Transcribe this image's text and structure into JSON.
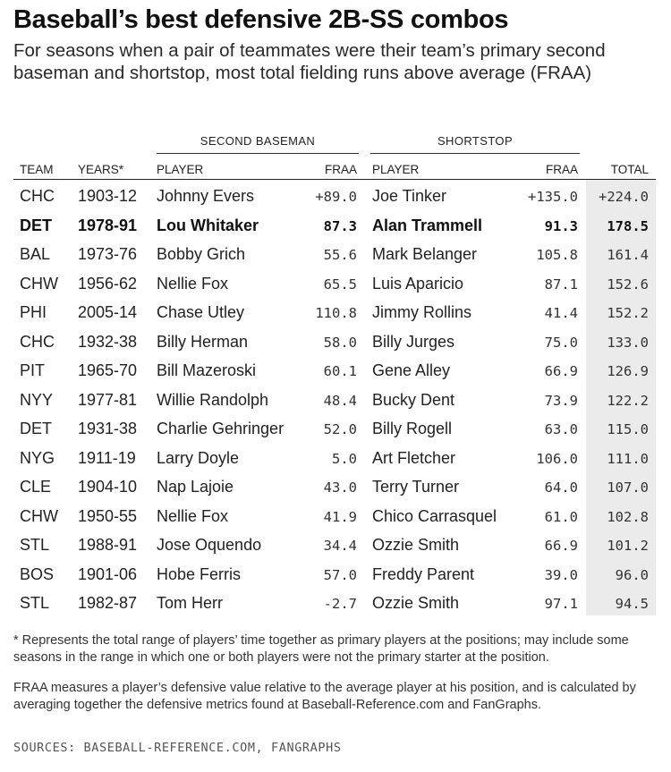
{
  "header": {
    "title": "Baseball’s best defensive 2B-SS combos",
    "subtitle": "For seasons when a pair of teammates were their team’s primary second baseman and shortstop, most total fielding runs above average (FRAA)"
  },
  "table": {
    "group_headers": {
      "second": "SECOND BASEMAN",
      "short": "SHORTSTOP"
    },
    "columns": [
      "TEAM",
      "YEARS*",
      "PLAYER",
      "FRAA",
      "PLAYER",
      "FRAA",
      "TOTAL"
    ],
    "rows": [
      {
        "team": "CHC",
        "years": "1903-12",
        "p1": "Johnny Evers",
        "f1": "+89.0",
        "p2": "Joe Tinker",
        "f2": "+135.0",
        "total": "+224.0",
        "bold": false
      },
      {
        "team": "DET",
        "years": "1978-91",
        "p1": "Lou Whitaker",
        "f1": "87.3",
        "p2": "Alan Trammell",
        "f2": "91.3",
        "total": "178.5",
        "bold": true
      },
      {
        "team": "BAL",
        "years": "1973-76",
        "p1": "Bobby Grich",
        "f1": "55.6",
        "p2": "Mark Belanger",
        "f2": "105.8",
        "total": "161.4",
        "bold": false
      },
      {
        "team": "CHW",
        "years": "1956-62",
        "p1": "Nellie Fox",
        "f1": "65.5",
        "p2": "Luis Aparicio",
        "f2": "87.1",
        "total": "152.6",
        "bold": false
      },
      {
        "team": "PHI",
        "years": "2005-14",
        "p1": "Chase Utley",
        "f1": "110.8",
        "p2": "Jimmy Rollins",
        "f2": "41.4",
        "total": "152.2",
        "bold": false
      },
      {
        "team": "CHC",
        "years": "1932-38",
        "p1": "Billy Herman",
        "f1": "58.0",
        "p2": "Billy Jurges",
        "f2": "75.0",
        "total": "133.0",
        "bold": false
      },
      {
        "team": "PIT",
        "years": "1965-70",
        "p1": "Bill Mazeroski",
        "f1": "60.1",
        "p2": "Gene Alley",
        "f2": "66.9",
        "total": "126.9",
        "bold": false
      },
      {
        "team": "NYY",
        "years": "1977-81",
        "p1": "Willie Randolph",
        "f1": "48.4",
        "p2": "Bucky Dent",
        "f2": "73.9",
        "total": "122.2",
        "bold": false
      },
      {
        "team": "DET",
        "years": "1931-38",
        "p1": "Charlie Gehringer",
        "f1": "52.0",
        "p2": "Billy Rogell",
        "f2": "63.0",
        "total": "115.0",
        "bold": false
      },
      {
        "team": "NYG",
        "years": "1911-19",
        "p1": "Larry Doyle",
        "f1": "5.0",
        "p2": "Art Fletcher",
        "f2": "106.0",
        "total": "111.0",
        "bold": false
      },
      {
        "team": "CLE",
        "years": "1904-10",
        "p1": "Nap Lajoie",
        "f1": "43.0",
        "p2": "Terry Turner",
        "f2": "64.0",
        "total": "107.0",
        "bold": false
      },
      {
        "team": "CHW",
        "years": "1950-55",
        "p1": "Nellie Fox",
        "f1": "41.9",
        "p2": "Chico Carrasquel",
        "f2": "61.0",
        "total": "102.8",
        "bold": false
      },
      {
        "team": "STL",
        "years": "1988-91",
        "p1": "Jose Oquendo",
        "f1": "34.4",
        "p2": "Ozzie Smith",
        "f2": "66.9",
        "total": "101.2",
        "bold": false
      },
      {
        "team": "BOS",
        "years": "1901-06",
        "p1": "Hobe Ferris",
        "f1": "57.0",
        "p2": "Freddy Parent",
        "f2": "39.0",
        "total": "96.0",
        "bold": false
      },
      {
        "team": "STL",
        "years": "1982-87",
        "p1": "Tom Herr",
        "f1": "-2.7",
        "p2": "Ozzie Smith",
        "f2": "97.1",
        "total": "94.5",
        "bold": false
      }
    ]
  },
  "footer": {
    "note1": "* Represents the total range of players’ time together as primary players at the positions; may include some seasons in the range in which one or both players were not the primary starter at the position.",
    "note2": "FRAA measures a player’s defensive value relative to the average player at his position, and is calculated by averaging together the defensive metrics found at Baseball-Reference.com and FanGraphs.",
    "sources": "SOURCES: BASEBALL-REFERENCE.COM, FANGRAPHS"
  },
  "colors": {
    "total_column_bg": "#ebebeb",
    "rule": "#222222"
  },
  "chart_data": {
    "type": "table",
    "title": "Baseball’s best defensive 2B-SS combos",
    "subtitle": "For seasons when a pair of teammates were their team’s primary second baseman and shortstop, most total fielding runs above average (FRAA)",
    "columns": [
      "TEAM",
      "YEARS*",
      "PLAYER",
      "FRAA",
      "PLAYER",
      "FRAA",
      "TOTAL"
    ],
    "column_groups": [
      {
        "label": "SECOND BASEMAN",
        "columns": [
          2,
          3
        ]
      },
      {
        "label": "SHORTSTOP",
        "columns": [
          4,
          5
        ]
      }
    ],
    "rows": [
      [
        "CHC",
        "1903-12",
        "Johnny Evers",
        89.0,
        "Joe Tinker",
        135.0,
        224.0
      ],
      [
        "DET",
        "1978-91",
        "Lou Whitaker",
        87.3,
        "Alan Trammell",
        91.3,
        178.5
      ],
      [
        "BAL",
        "1973-76",
        "Bobby Grich",
        55.6,
        "Mark Belanger",
        105.8,
        161.4
      ],
      [
        "CHW",
        "1956-62",
        "Nellie Fox",
        65.5,
        "Luis Aparicio",
        87.1,
        152.6
      ],
      [
        "PHI",
        "2005-14",
        "Chase Utley",
        110.8,
        "Jimmy Rollins",
        41.4,
        152.2
      ],
      [
        "CHC",
        "1932-38",
        "Billy Herman",
        58.0,
        "Billy Jurges",
        75.0,
        133.0
      ],
      [
        "PIT",
        "1965-70",
        "Bill Mazeroski",
        60.1,
        "Gene Alley",
        66.9,
        126.9
      ],
      [
        "NYY",
        "1977-81",
        "Willie Randolph",
        48.4,
        "Bucky Dent",
        73.9,
        122.2
      ],
      [
        "DET",
        "1931-38",
        "Charlie Gehringer",
        52.0,
        "Billy Rogell",
        63.0,
        115.0
      ],
      [
        "NYG",
        "1911-19",
        "Larry Doyle",
        5.0,
        "Art Fletcher",
        106.0,
        111.0
      ],
      [
        "CLE",
        "1904-10",
        "Nap Lajoie",
        43.0,
        "Terry Turner",
        64.0,
        107.0
      ],
      [
        "CHW",
        "1950-55",
        "Nellie Fox",
        41.9,
        "Chico Carrasquel",
        61.0,
        102.8
      ],
      [
        "STL",
        "1988-91",
        "Jose Oquendo",
        34.4,
        "Ozzie Smith",
        66.9,
        101.2
      ],
      [
        "BOS",
        "1901-06",
        "Hobe Ferris",
        57.0,
        "Freddy Parent",
        39.0,
        96.0
      ],
      [
        "STL",
        "1982-87",
        "Tom Herr",
        -2.7,
        "Ozzie Smith",
        97.1,
        94.5
      ]
    ],
    "highlighted_row": 1
  }
}
